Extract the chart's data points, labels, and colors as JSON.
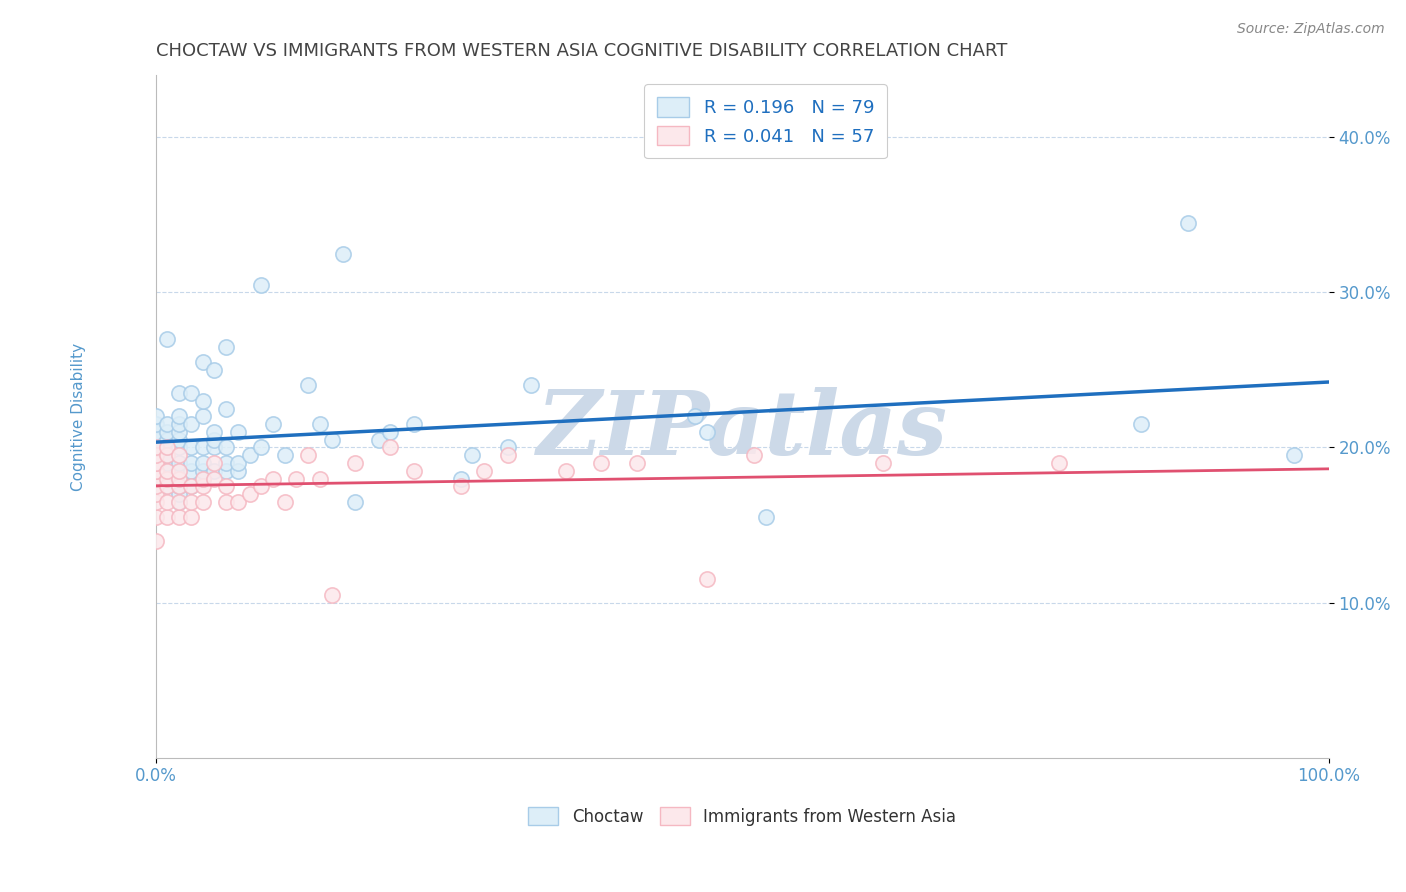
{
  "title": "CHOCTAW VS IMMIGRANTS FROM WESTERN ASIA COGNITIVE DISABILITY CORRELATION CHART",
  "source_text": "Source: ZipAtlas.com",
  "ylabel": "Cognitive Disability",
  "legend1_label": "Choctaw",
  "legend2_label": "Immigrants from Western Asia",
  "r1": 0.196,
  "n1": 79,
  "r2": 0.041,
  "n2": 57,
  "xlim": [
    0,
    1.0
  ],
  "ylim": [
    0.0,
    0.44
  ],
  "xticklabels": [
    "0.0%",
    "100.0%"
  ],
  "yticklabels": [
    "10.0%",
    "20.0%",
    "30.0%",
    "40.0%"
  ],
  "ytick_positions": [
    0.1,
    0.2,
    0.3,
    0.4
  ],
  "color_blue": "#a8cce8",
  "color_pink": "#f5b8c2",
  "color_blue_fill": "#ddeef8",
  "color_pink_fill": "#fce8eb",
  "color_blue_line": "#1f6fbf",
  "color_pink_line": "#e05070",
  "watermark_color": "#ccd9e8",
  "watermark_text": "ZIPatlas",
  "background_color": "#ffffff",
  "grid_color": "#c8d8ea",
  "axis_color": "#bbbbbb",
  "title_color": "#444444",
  "tick_label_color": "#5599cc",
  "source_color": "#888888",
  "blue_scatter_x": [
    0.0,
    0.0,
    0.0,
    0.0,
    0.0,
    0.0,
    0.0,
    0.0,
    0.01,
    0.01,
    0.01,
    0.01,
    0.01,
    0.01,
    0.01,
    0.01,
    0.01,
    0.01,
    0.02,
    0.02,
    0.02,
    0.02,
    0.02,
    0.02,
    0.02,
    0.02,
    0.02,
    0.02,
    0.02,
    0.02,
    0.03,
    0.03,
    0.03,
    0.03,
    0.03,
    0.03,
    0.04,
    0.04,
    0.04,
    0.04,
    0.04,
    0.04,
    0.04,
    0.05,
    0.05,
    0.05,
    0.05,
    0.05,
    0.06,
    0.06,
    0.06,
    0.06,
    0.06,
    0.07,
    0.07,
    0.07,
    0.08,
    0.09,
    0.09,
    0.1,
    0.11,
    0.13,
    0.14,
    0.15,
    0.16,
    0.17,
    0.19,
    0.2,
    0.22,
    0.26,
    0.27,
    0.3,
    0.32,
    0.46,
    0.47,
    0.52,
    0.84,
    0.88,
    0.97
  ],
  "blue_scatter_y": [
    0.185,
    0.195,
    0.198,
    0.2,
    0.205,
    0.21,
    0.215,
    0.22,
    0.175,
    0.18,
    0.185,
    0.19,
    0.195,
    0.2,
    0.205,
    0.21,
    0.215,
    0.27,
    0.165,
    0.17,
    0.175,
    0.18,
    0.185,
    0.19,
    0.2,
    0.205,
    0.21,
    0.215,
    0.22,
    0.235,
    0.175,
    0.185,
    0.19,
    0.2,
    0.215,
    0.235,
    0.18,
    0.185,
    0.19,
    0.2,
    0.22,
    0.23,
    0.255,
    0.185,
    0.2,
    0.205,
    0.21,
    0.25,
    0.185,
    0.19,
    0.2,
    0.225,
    0.265,
    0.185,
    0.19,
    0.21,
    0.195,
    0.2,
    0.305,
    0.215,
    0.195,
    0.24,
    0.215,
    0.205,
    0.325,
    0.165,
    0.205,
    0.21,
    0.215,
    0.18,
    0.195,
    0.2,
    0.24,
    0.22,
    0.21,
    0.155,
    0.215,
    0.345,
    0.195
  ],
  "pink_scatter_x": [
    0.0,
    0.0,
    0.0,
    0.0,
    0.0,
    0.0,
    0.0,
    0.0,
    0.0,
    0.0,
    0.0,
    0.0,
    0.01,
    0.01,
    0.01,
    0.01,
    0.01,
    0.01,
    0.01,
    0.02,
    0.02,
    0.02,
    0.02,
    0.02,
    0.02,
    0.03,
    0.03,
    0.03,
    0.04,
    0.04,
    0.04,
    0.05,
    0.05,
    0.06,
    0.06,
    0.07,
    0.08,
    0.09,
    0.1,
    0.11,
    0.12,
    0.13,
    0.14,
    0.15,
    0.17,
    0.2,
    0.22,
    0.26,
    0.28,
    0.3,
    0.35,
    0.38,
    0.41,
    0.47,
    0.51,
    0.62,
    0.77
  ],
  "pink_scatter_y": [
    0.14,
    0.155,
    0.165,
    0.17,
    0.175,
    0.18,
    0.185,
    0.185,
    0.19,
    0.19,
    0.195,
    0.2,
    0.155,
    0.165,
    0.175,
    0.18,
    0.185,
    0.195,
    0.2,
    0.155,
    0.165,
    0.175,
    0.18,
    0.185,
    0.195,
    0.155,
    0.165,
    0.175,
    0.165,
    0.175,
    0.18,
    0.18,
    0.19,
    0.165,
    0.175,
    0.165,
    0.17,
    0.175,
    0.18,
    0.165,
    0.18,
    0.195,
    0.18,
    0.105,
    0.19,
    0.2,
    0.185,
    0.175,
    0.185,
    0.195,
    0.185,
    0.19,
    0.19,
    0.115,
    0.195,
    0.19,
    0.19
  ]
}
